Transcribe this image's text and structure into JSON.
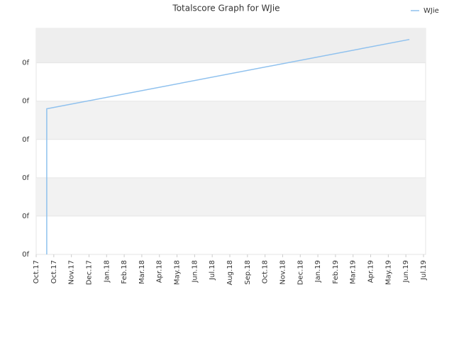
{
  "chart_data": {
    "type": "line",
    "title": "Totalscore Graph for WJie",
    "x": [
      0.6,
      0.6,
      21.2
    ],
    "series": [
      {
        "name": "WJie",
        "color": "#8fc1ee",
        "values": [
          0,
          3.8,
          5.61
        ]
      }
    ],
    "xlim": [
      0,
      22
    ],
    "xticks": [
      {
        "value": 0,
        "label": "Oct.17"
      },
      {
        "value": 1,
        "label": "Oct.17"
      },
      {
        "value": 2,
        "label": "Nov.17"
      },
      {
        "value": 3,
        "label": "Dec.17"
      },
      {
        "value": 4,
        "label": "Jan.18"
      },
      {
        "value": 5,
        "label": "Feb.18"
      },
      {
        "value": 6,
        "label": "Mar.18"
      },
      {
        "value": 7,
        "label": "Apr.18"
      },
      {
        "value": 8,
        "label": "May.18"
      },
      {
        "value": 9,
        "label": "Jun.18"
      },
      {
        "value": 10,
        "label": "Jul.18"
      },
      {
        "value": 11,
        "label": "Aug.18"
      },
      {
        "value": 12,
        "label": "Sep.18"
      },
      {
        "value": 13,
        "label": "Oct.18"
      },
      {
        "value": 14,
        "label": "Nov.18"
      },
      {
        "value": 15,
        "label": "Dec.18"
      },
      {
        "value": 16,
        "label": "Jan.19"
      },
      {
        "value": 17,
        "label": "Feb.19"
      },
      {
        "value": 18,
        "label": "Mar.19"
      },
      {
        "value": 19,
        "label": "Apr.19"
      },
      {
        "value": 20,
        "label": "May.19"
      },
      {
        "value": 21,
        "label": "Jun.19"
      },
      {
        "value": 22,
        "label": "Jul.19"
      }
    ],
    "ylim": [
      0,
      5.9
    ],
    "yticks": [
      {
        "value": 0,
        "label": "0f"
      },
      {
        "value": 1,
        "label": "0f"
      },
      {
        "value": 2,
        "label": "0f"
      },
      {
        "value": 3,
        "label": "0f"
      },
      {
        "value": 4,
        "label": "0f"
      },
      {
        "value": 5,
        "label": "0f"
      }
    ],
    "grid": true,
    "legend": "top-right"
  }
}
